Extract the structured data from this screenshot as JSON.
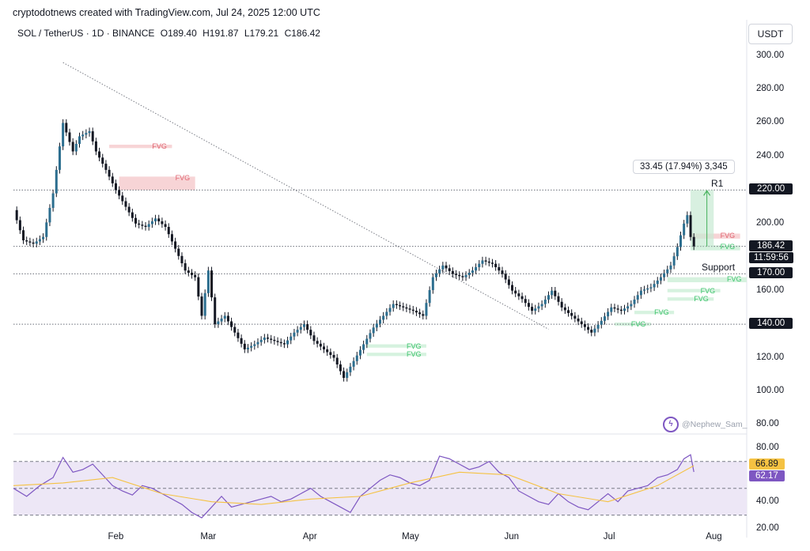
{
  "attribution": "cryptodotnews created with TradingView.com, Jul 24, 2025 12:00 UTC",
  "symbol_bar": {
    "symbol": "SOL / TetherUS · 1D · BINANCE",
    "open": "O189.40",
    "high": "H191.87",
    "low": "L179.21",
    "close": "C186.42"
  },
  "currency_button": "USDT",
  "watermark": "@Nephew_Sam_",
  "colors": {
    "up": "#26a69a",
    "down": "#131722",
    "candle_body_up": "#2c6e8f",
    "fvg_red": "#f7d4d6",
    "fvg_green": "#d6f2df",
    "rsi_line": "#7e57c2",
    "rsi_ma": "#f5c242",
    "rsi_band": "#ede7f6"
  },
  "chart_data": [
    {
      "type": "candlestick",
      "symbol": "SOL / TetherUS",
      "interval": "1D",
      "y_axis_ticks": [
        "300.00",
        "280.00",
        "260.00",
        "240.00",
        "220.00",
        "200.00",
        "160.00",
        "120.00",
        "100.00",
        "80.00"
      ],
      "ylim": [
        75,
        305
      ],
      "x_axis_labels": [
        "Feb",
        "Mar",
        "Apr",
        "May",
        "Jun",
        "Jul",
        "Aug"
      ],
      "x_axis_label_days": [
        31,
        59,
        90,
        120,
        151,
        181,
        212
      ],
      "x_days_visible": [
        0,
        222
      ],
      "close_series_approx": [
        {
          "day": 0,
          "close": 208
        },
        {
          "day": 3,
          "close": 190
        },
        {
          "day": 6,
          "close": 188
        },
        {
          "day": 9,
          "close": 192
        },
        {
          "day": 12,
          "close": 218
        },
        {
          "day": 15,
          "close": 260
        },
        {
          "day": 18,
          "close": 243
        },
        {
          "day": 20,
          "close": 252
        },
        {
          "day": 23,
          "close": 255
        },
        {
          "day": 25,
          "close": 243
        },
        {
          "day": 28,
          "close": 232
        },
        {
          "day": 31,
          "close": 220
        },
        {
          "day": 34,
          "close": 210
        },
        {
          "day": 37,
          "close": 200
        },
        {
          "day": 40,
          "close": 198
        },
        {
          "day": 43,
          "close": 203
        },
        {
          "day": 46,
          "close": 198
        },
        {
          "day": 49,
          "close": 185
        },
        {
          "day": 52,
          "close": 172
        },
        {
          "day": 55,
          "close": 168
        },
        {
          "day": 57,
          "close": 145
        },
        {
          "day": 59,
          "close": 172
        },
        {
          "day": 61,
          "close": 140
        },
        {
          "day": 64,
          "close": 145
        },
        {
          "day": 67,
          "close": 135
        },
        {
          "day": 70,
          "close": 125
        },
        {
          "day": 73,
          "close": 128
        },
        {
          "day": 76,
          "close": 132
        },
        {
          "day": 79,
          "close": 130
        },
        {
          "day": 82,
          "close": 128
        },
        {
          "day": 85,
          "close": 135
        },
        {
          "day": 88,
          "close": 140
        },
        {
          "day": 91,
          "close": 130
        },
        {
          "day": 94,
          "close": 125
        },
        {
          "day": 97,
          "close": 120
        },
        {
          "day": 100,
          "close": 108
        },
        {
          "day": 103,
          "close": 118
        },
        {
          "day": 106,
          "close": 128
        },
        {
          "day": 109,
          "close": 138
        },
        {
          "day": 112,
          "close": 145
        },
        {
          "day": 115,
          "close": 152
        },
        {
          "day": 118,
          "close": 150
        },
        {
          "day": 121,
          "close": 148
        },
        {
          "day": 124,
          "close": 145
        },
        {
          "day": 127,
          "close": 168
        },
        {
          "day": 130,
          "close": 175
        },
        {
          "day": 133,
          "close": 170
        },
        {
          "day": 136,
          "close": 168
        },
        {
          "day": 139,
          "close": 172
        },
        {
          "day": 142,
          "close": 178
        },
        {
          "day": 145,
          "close": 176
        },
        {
          "day": 148,
          "close": 170
        },
        {
          "day": 151,
          "close": 160
        },
        {
          "day": 154,
          "close": 155
        },
        {
          "day": 157,
          "close": 148
        },
        {
          "day": 160,
          "close": 152
        },
        {
          "day": 163,
          "close": 160
        },
        {
          "day": 166,
          "close": 150
        },
        {
          "day": 169,
          "close": 145
        },
        {
          "day": 172,
          "close": 140
        },
        {
          "day": 175,
          "close": 135
        },
        {
          "day": 178,
          "close": 142
        },
        {
          "day": 181,
          "close": 150
        },
        {
          "day": 184,
          "close": 148
        },
        {
          "day": 187,
          "close": 152
        },
        {
          "day": 190,
          "close": 160
        },
        {
          "day": 193,
          "close": 162
        },
        {
          "day": 196,
          "close": 168
        },
        {
          "day": 199,
          "close": 175
        },
        {
          "day": 201,
          "close": 186
        },
        {
          "day": 203,
          "close": 200
        },
        {
          "day": 204,
          "close": 205
        },
        {
          "day": 205,
          "close": 192
        },
        {
          "day": 206,
          "close": 186.42
        }
      ],
      "downtrend_line": {
        "from": {
          "day": 15,
          "price": 296
        },
        "to": {
          "day": 162,
          "price": 137
        }
      },
      "horizontal_levels": [
        {
          "price": 220,
          "label": "220.00",
          "line_label": "R1",
          "style": "dotted"
        },
        {
          "price": 186.42,
          "label": "186.42",
          "sub_label": "11:59:56",
          "style": "dotted"
        },
        {
          "price": 170,
          "label": "170.00",
          "line_label": "Support",
          "style": "dotted"
        },
        {
          "price": 140,
          "label": "140.00",
          "style": "dotted"
        }
      ],
      "fvg_zones": [
        {
          "label": "FVG",
          "color": "red",
          "day_from": 29,
          "day_to": 48,
          "price_from": 245,
          "price_to": 247
        },
        {
          "label": "FVG",
          "color": "red",
          "day_from": 32,
          "day_to": 55,
          "price_from": 220,
          "price_to": 228
        },
        {
          "label": "FVG",
          "color": "red",
          "day_from": 205,
          "day_to": 220,
          "price_from": 191,
          "price_to": 194
        },
        {
          "label": "FVG",
          "color": "green",
          "day_from": 205,
          "day_to": 220,
          "price_from": 184,
          "price_to": 187
        },
        {
          "label": "FVG",
          "color": "green",
          "day_from": 198,
          "day_to": 222,
          "price_from": 165,
          "price_to": 168
        },
        {
          "label": "FVG",
          "color": "green",
          "day_from": 198,
          "day_to": 214,
          "price_from": 159,
          "price_to": 161
        },
        {
          "label": "FVG",
          "color": "green",
          "day_from": 198,
          "day_to": 212,
          "price_from": 154,
          "price_to": 156
        },
        {
          "label": "FVG",
          "color": "green",
          "day_from": 188,
          "day_to": 200,
          "price_from": 146,
          "price_to": 148
        },
        {
          "label": "FVG",
          "color": "green",
          "day_from": 182,
          "day_to": 193,
          "price_from": 139,
          "price_to": 141
        },
        {
          "label": "FVG",
          "color": "green",
          "day_from": 107,
          "day_to": 125,
          "price_from": 126,
          "price_to": 128
        },
        {
          "label": "FVG",
          "color": "green",
          "day_from": 107,
          "day_to": 125,
          "price_from": 121,
          "price_to": 123
        }
      ],
      "measure": {
        "label": "33.45 (17.94%) 3,345",
        "from_price": 186.42,
        "to_price": 220,
        "day_from": 205,
        "day_to": 212
      }
    },
    {
      "type": "line",
      "name": "",
      "y_axis_ticks": [
        "80.00",
        "40.00",
        "20.00"
      ],
      "ylim": [
        18,
        84
      ],
      "band": [
        30,
        70
      ],
      "midline": 50,
      "current_labels": {
        "rsi": "62.17",
        "ma": "66.89"
      },
      "series": [
        {
          "name": "",
          "x": [
            0,
            4,
            8,
            12,
            15,
            18,
            21,
            24,
            27,
            30,
            33,
            36,
            39,
            42,
            45,
            48,
            51,
            54,
            57,
            60,
            63,
            66,
            69,
            72,
            75,
            78,
            81,
            84,
            87,
            90,
            93,
            96,
            99,
            102,
            105,
            108,
            111,
            114,
            117,
            120,
            123,
            126,
            129,
            132,
            135,
            138,
            141,
            144,
            147,
            150,
            153,
            156,
            159,
            162,
            165,
            168,
            171,
            174,
            177,
            180,
            183,
            186,
            189,
            192,
            195,
            198,
            201,
            203,
            205,
            206
          ],
          "values": [
            50,
            44,
            52,
            58,
            73,
            62,
            64,
            68,
            60,
            52,
            48,
            45,
            52,
            50,
            46,
            42,
            38,
            32,
            28,
            36,
            44,
            36,
            38,
            40,
            42,
            44,
            40,
            42,
            46,
            50,
            44,
            40,
            36,
            32,
            44,
            50,
            56,
            60,
            58,
            54,
            52,
            56,
            74,
            72,
            68,
            64,
            66,
            70,
            62,
            58,
            48,
            44,
            40,
            38,
            46,
            40,
            36,
            34,
            40,
            46,
            40,
            48,
            50,
            52,
            58,
            60,
            64,
            72,
            75,
            62.17
          ]
        },
        {
          "name": "",
          "x": [
            0,
            15,
            30,
            45,
            60,
            75,
            90,
            105,
            120,
            135,
            150,
            165,
            180,
            195,
            206
          ],
          "values": [
            52,
            54,
            58,
            46,
            40,
            38,
            42,
            44,
            54,
            62,
            60,
            46,
            40,
            52,
            66.89
          ]
        }
      ]
    }
  ]
}
